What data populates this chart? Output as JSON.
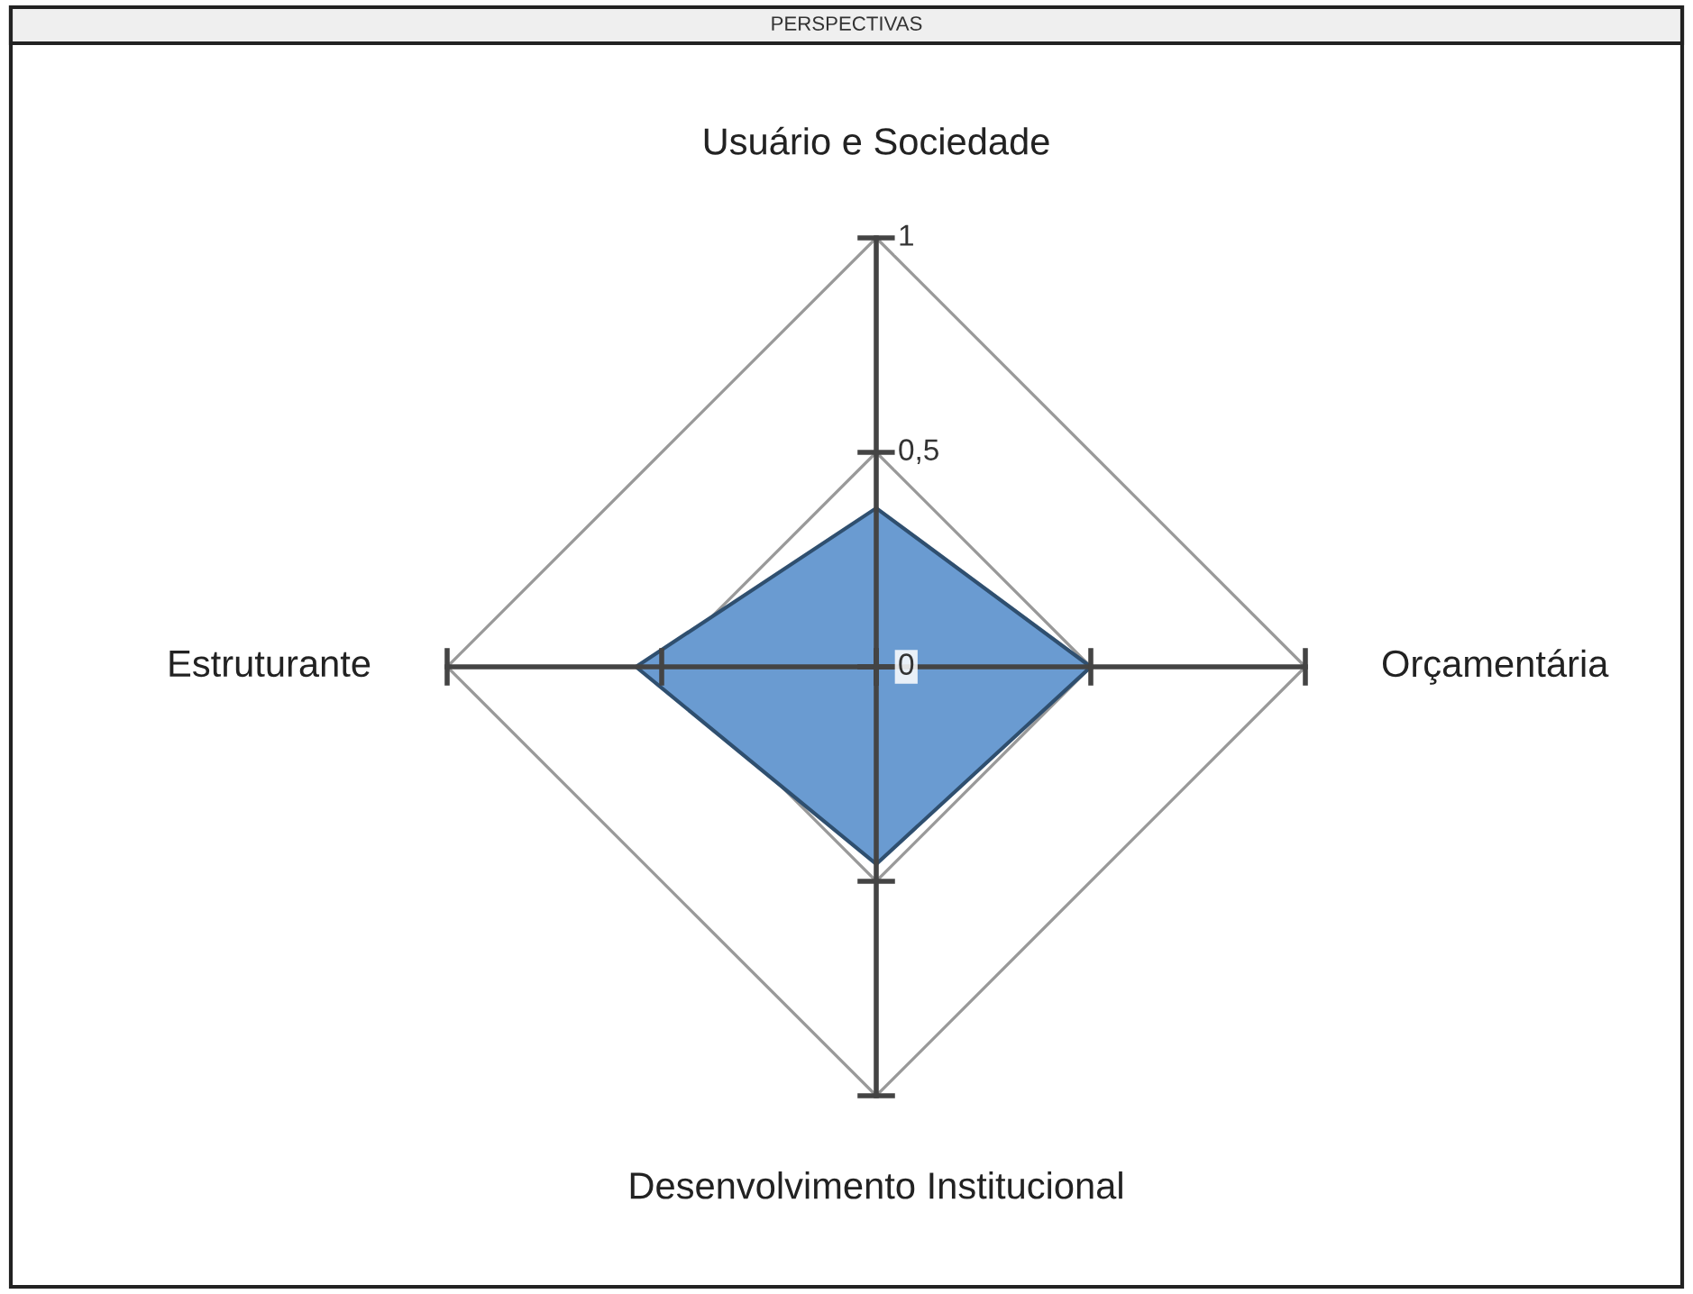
{
  "chart_data": {
    "type": "radar",
    "title": "PERSPECTIVAS",
    "categories": [
      "Usuário e Sociedade",
      "Orçamentária",
      "Desenvolvimento Institucional",
      "Estruturante"
    ],
    "series": [
      {
        "color": "#6a9bd1",
        "values": [
          0.37,
          0.5,
          0.46,
          0.56
        ]
      }
    ],
    "ylim": [
      0,
      1
    ],
    "yticks": [
      0,
      {
        "value": 0.5,
        "label": "0,5"
      },
      1
    ],
    "grid": true
  }
}
